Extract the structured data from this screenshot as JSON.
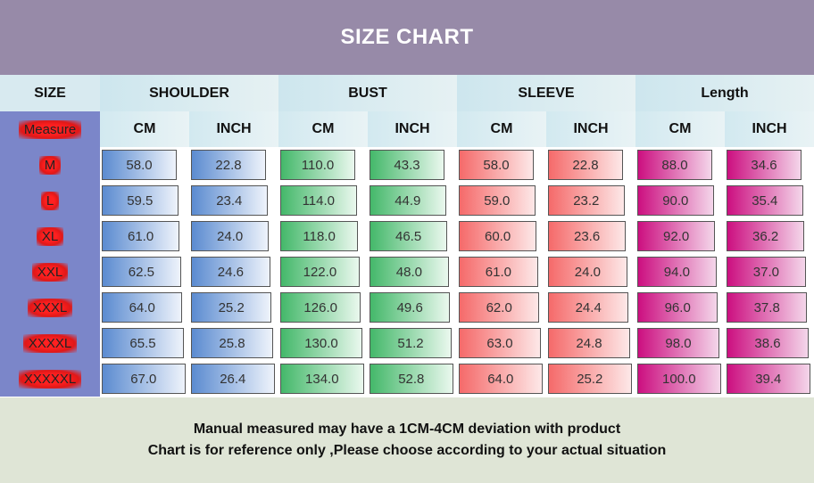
{
  "title": "SIZE CHART",
  "headers": {
    "size": "SIZE",
    "groups": [
      "SHOULDER",
      "BUST",
      "SLEEVE",
      "Length"
    ],
    "measure": "Measure",
    "units": [
      "CM",
      "INCH",
      "CM",
      "INCH",
      "CM",
      "INCH",
      "CM",
      "INCH"
    ]
  },
  "rows": [
    {
      "size": "M",
      "values": [
        "58.0",
        "22.8",
        "110.0",
        "43.3",
        "58.0",
        "22.8",
        "88.0",
        "34.6"
      ]
    },
    {
      "size": "L",
      "values": [
        "59.5",
        "23.4",
        "114.0",
        "44.9",
        "59.0",
        "23.2",
        "90.0",
        "35.4"
      ]
    },
    {
      "size": "XL",
      "values": [
        "61.0",
        "24.0",
        "118.0",
        "46.5",
        "60.0",
        "23.6",
        "92.0",
        "36.2"
      ]
    },
    {
      "size": "XXL",
      "values": [
        "62.5",
        "24.6",
        "122.0",
        "48.0",
        "61.0",
        "24.0",
        "94.0",
        "37.0"
      ]
    },
    {
      "size": "XXXL",
      "values": [
        "64.0",
        "25.2",
        "126.0",
        "49.6",
        "62.0",
        "24.4",
        "96.0",
        "37.8"
      ]
    },
    {
      "size": "XXXXL",
      "values": [
        "65.5",
        "25.8",
        "130.0",
        "51.2",
        "63.0",
        "24.8",
        "98.0",
        "38.6"
      ]
    },
    {
      "size": "XXXXXL",
      "values": [
        "67.0",
        "26.4",
        "134.0",
        "52.8",
        "64.0",
        "25.2",
        "100.0",
        "39.4"
      ]
    }
  ],
  "footer": {
    "line1": "Manual measured may have a 1CM-4CM deviation with product",
    "line2": "Chart is for reference only ,Please choose according to your actual situation"
  },
  "colors": {
    "title_bg": "#978aa8",
    "shoulder": "#5b8bd0",
    "bust": "#44b86a",
    "sleeve": "#f56a6a",
    "length": "#cc0f80",
    "size_col": "#7b86c9"
  }
}
